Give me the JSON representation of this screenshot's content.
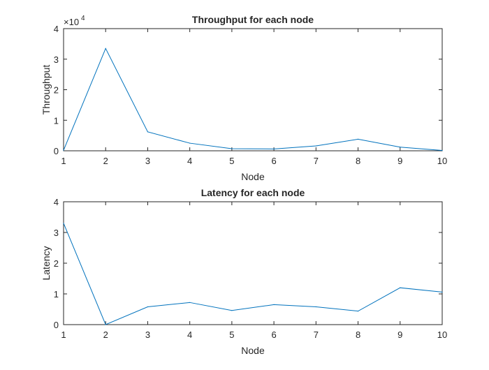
{
  "chart_data": [
    {
      "type": "line",
      "title": "Throughput for each node",
      "xlabel": "Node",
      "ylabel": "Throughput",
      "exponent_label": "×10",
      "exponent_power": "4",
      "xlim": [
        1,
        10
      ],
      "ylim": [
        0,
        4
      ],
      "xticks": [
        1,
        2,
        3,
        4,
        5,
        6,
        7,
        8,
        9,
        10
      ],
      "yticks": [
        0,
        1,
        2,
        3,
        4
      ],
      "grid": false,
      "color": "#0072bd",
      "series": [
        {
          "x": [
            1,
            2,
            3,
            4,
            5,
            6,
            7,
            8,
            9,
            10
          ],
          "values": [
            0.02,
            3.35,
            0.62,
            0.25,
            0.07,
            0.06,
            0.16,
            0.38,
            0.12,
            0.01
          ]
        }
      ]
    },
    {
      "type": "line",
      "title": "Latency for each node",
      "xlabel": "Node",
      "ylabel": "Latency",
      "xlim": [
        1,
        10
      ],
      "ylim": [
        0,
        4
      ],
      "xticks": [
        1,
        2,
        3,
        4,
        5,
        6,
        7,
        8,
        9,
        10
      ],
      "yticks": [
        0,
        1,
        2,
        3,
        4
      ],
      "grid": false,
      "color": "#0072bd",
      "series": [
        {
          "x": [
            1,
            2,
            3,
            4,
            5,
            6,
            7,
            8,
            9,
            10
          ],
          "values": [
            3.3,
            0.0,
            0.58,
            0.72,
            0.46,
            0.65,
            0.58,
            0.44,
            1.2,
            1.06
          ]
        }
      ]
    }
  ]
}
